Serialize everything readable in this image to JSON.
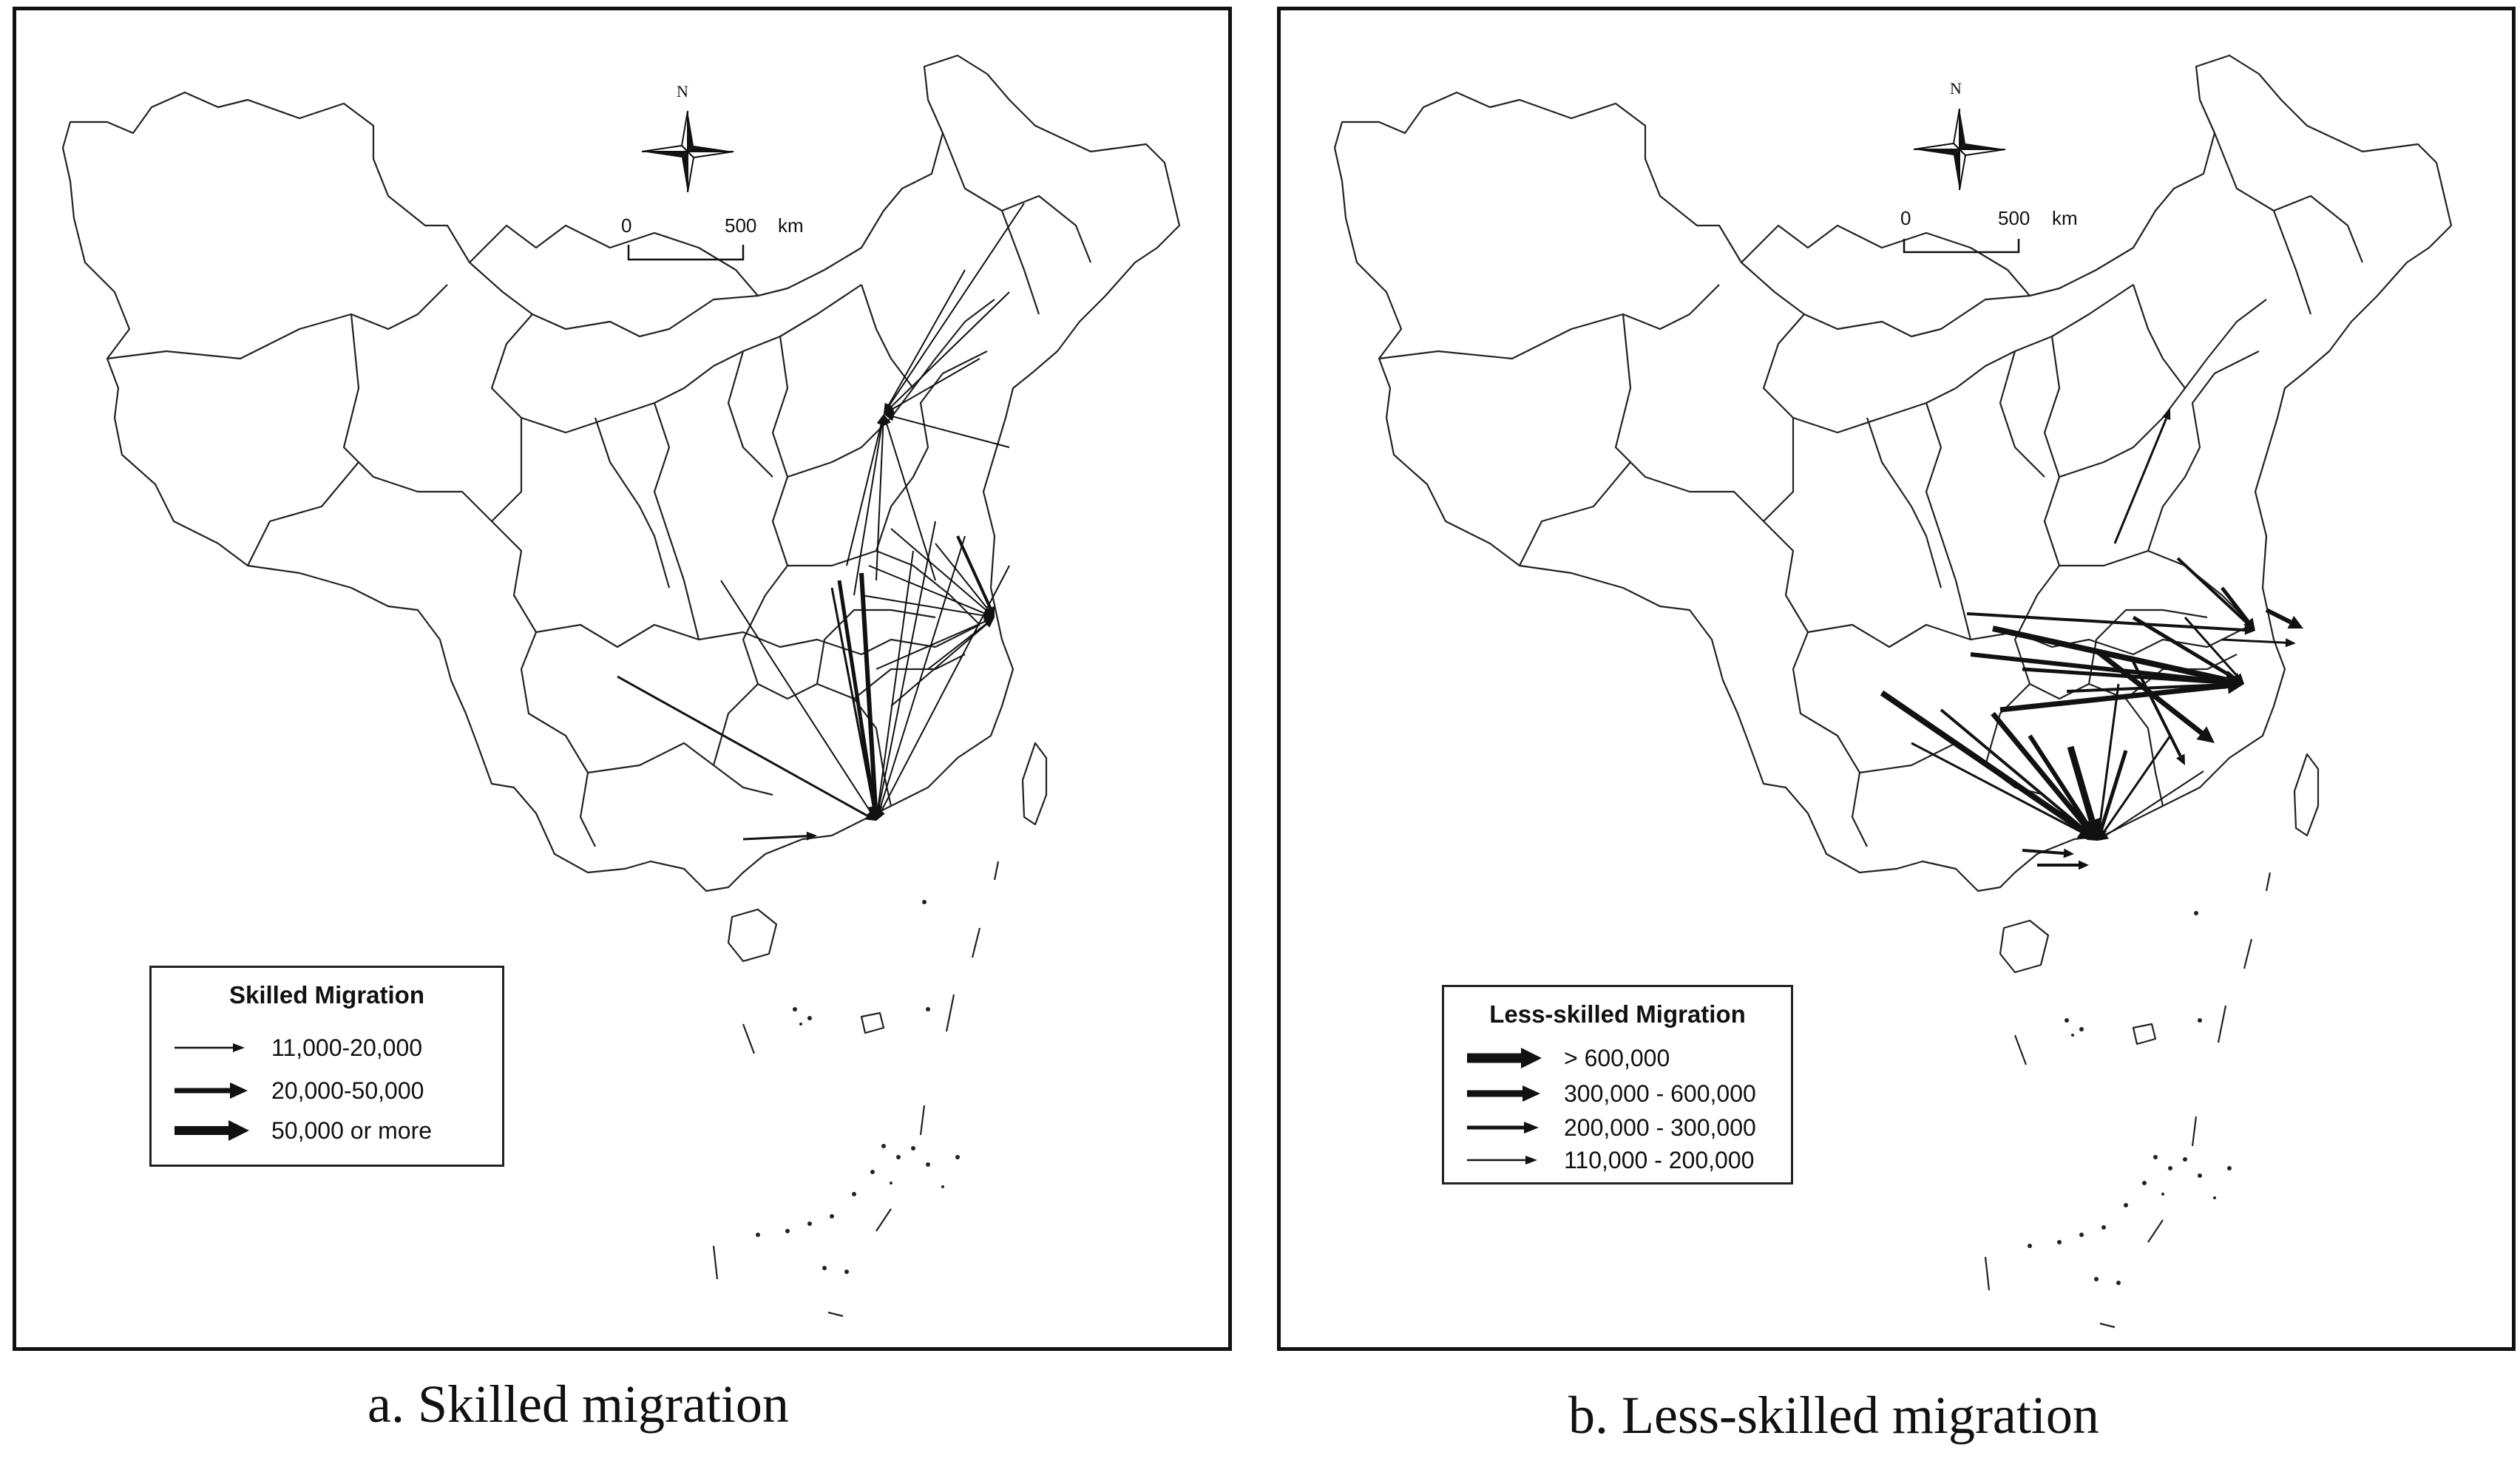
{
  "panel_a": {
    "caption": "a. Skilled migration",
    "compass_label": "N",
    "scale": {
      "zero": "0",
      "distance": "500",
      "unit": "km"
    },
    "legend": {
      "title": "Skilled Migration",
      "items": [
        {
          "label": "11,000-20,000"
        },
        {
          "label": "20,000-50,000"
        },
        {
          "label": "50,000 or more"
        }
      ]
    }
  },
  "panel_b": {
    "caption": "b. Less-skilled migration",
    "compass_label": "N",
    "scale": {
      "zero": "0",
      "distance": "500",
      "unit": "km"
    },
    "legend": {
      "title": "Less-skilled Migration",
      "items": [
        {
          "label": "> 600,000"
        },
        {
          "label": "300,000 - 600,000"
        },
        {
          "label": "200,000 - 300,000"
        },
        {
          "label": "110,000 - 200,000"
        }
      ]
    }
  },
  "colors": {
    "line": "#111111",
    "background": "#ffffff"
  }
}
